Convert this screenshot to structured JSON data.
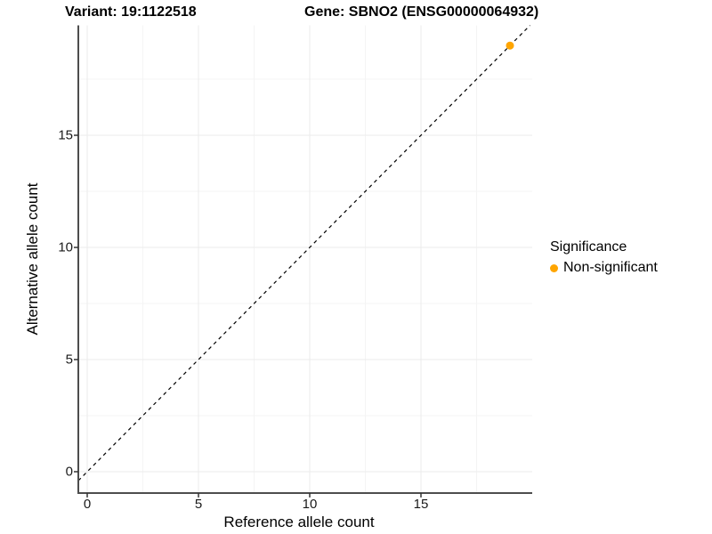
{
  "header": {
    "variant_title": "Variant: 19:1122518",
    "gene_title": "Gene: SBNO2 (ENSG00000064932)"
  },
  "chart_data": {
    "type": "scatter",
    "xlabel": "Reference allele count",
    "ylabel": "Alternative allele count",
    "xlim": [
      -0.4,
      20.0
    ],
    "ylim": [
      -0.95,
      19.9
    ],
    "xticks": [
      0,
      5,
      10,
      15
    ],
    "yticks": [
      0,
      5,
      10,
      15
    ],
    "minor_xticks": [
      2.5,
      7.5,
      12.5,
      17.5
    ],
    "minor_yticks": [
      2.5,
      7.5,
      12.5,
      17.5
    ],
    "grid": true,
    "points": [
      {
        "x": 19,
        "y": 19,
        "series": "Non-significant"
      }
    ],
    "reference_line": {
      "equation": "y = x",
      "style": "dashed",
      "color": "#000000"
    },
    "legend": {
      "title": "Significance",
      "position": "right",
      "entries": [
        {
          "label": "Non-significant",
          "color": "#FFA500",
          "marker": "circle"
        }
      ]
    },
    "colors": {
      "point": "#FFA500",
      "grid_major": "#EBEBEB",
      "grid_minor": "#F4F4F4",
      "axis_line": "#4D4D4D",
      "tick_mark": "#333333"
    }
  }
}
